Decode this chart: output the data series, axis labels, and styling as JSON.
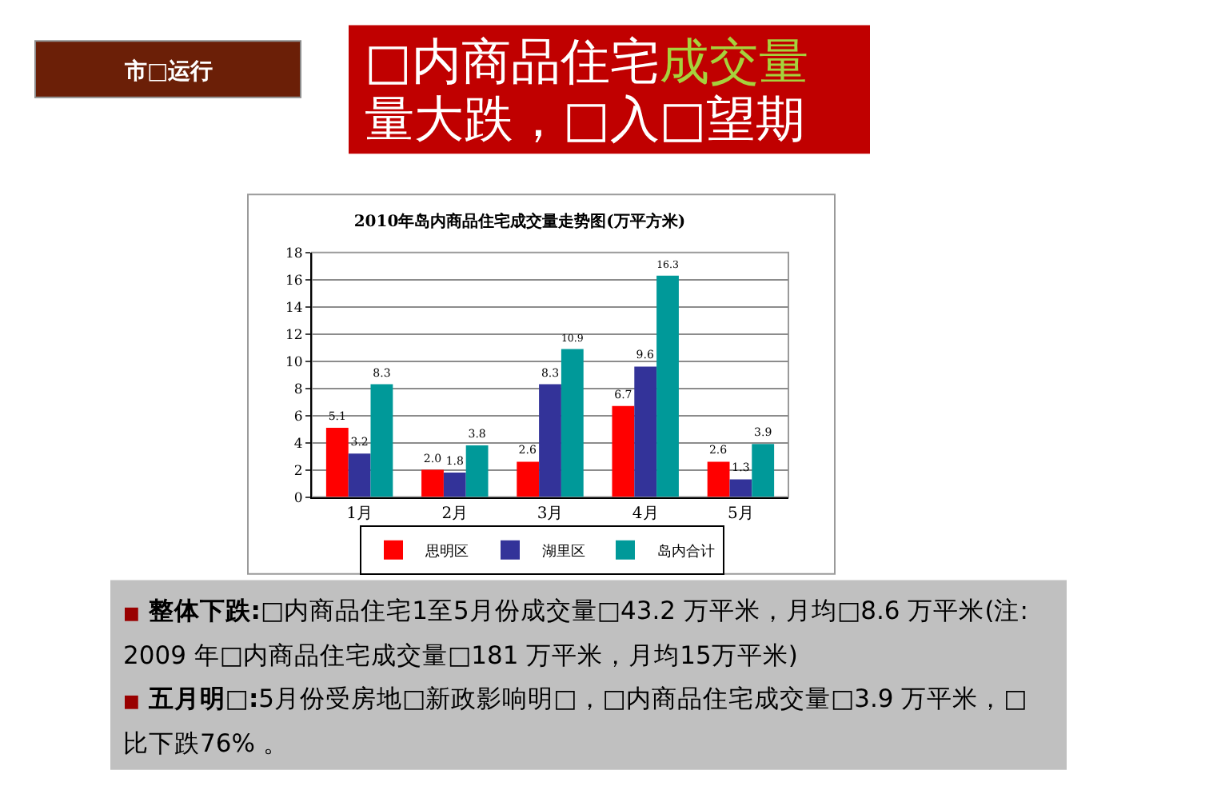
{
  "chart_data": {
    "type": "bar",
    "title": "2010年岛内商品住宅成交量走势图(万平方米)",
    "categories": [
      "1月",
      "2月",
      "3月",
      "4月",
      "5月"
    ],
    "series": [
      {
        "name": "思明区",
        "color": "#ff0000",
        "values": [
          5.1,
          2.0,
          2.6,
          6.7,
          2.6
        ],
        "value_labels": [
          "5.1",
          "2.0",
          "2.6",
          "6.7",
          "2.6"
        ]
      },
      {
        "name": "湖里区",
        "color": "#333399",
        "values": [
          3.2,
          1.8,
          8.3,
          9.6,
          1.3
        ],
        "value_labels": [
          "3.2",
          "1.8",
          "8.3",
          "9.6",
          "1.3"
        ]
      },
      {
        "name": "岛内合计",
        "color": "#009999",
        "values": [
          8.3,
          3.8,
          10.9,
          16.3,
          3.9
        ],
        "value_labels": [
          "8.3",
          "3.8",
          "10.9",
          "16.3",
          "3.9"
        ]
      }
    ],
    "ylim": [
      0,
      18
    ],
    "yticks": [
      0,
      2,
      4,
      6,
      8,
      10,
      12,
      14,
      16,
      18
    ],
    "grid": "y",
    "legend": "bottom",
    "annotations": [
      "市□运行",
      "□内商品住宅",
      "成交量",
      "量大跌，□入□望期",
      "■ 整体下跌:",
      "□内商品住宅1至5月份成交量□43.2 万平米，月均□8.6 万平米(注:\n2009 年□内商品住宅成交量□181 万平米，月均15万平米)",
      "■ 五月明□:",
      "5月份受房地□新政影响明□，□内商品住宅成交量□3.9 万平米，□\n比下跌76% 。"
    ]
  }
}
